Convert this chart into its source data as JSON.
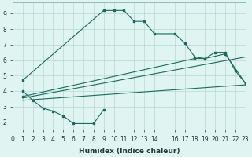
{
  "bg_color": "#e0f4f1",
  "grid_color": "#b8d8d4",
  "line_color": "#1a6b5a",
  "line1_x": [
    1,
    9,
    10,
    11,
    12,
    13,
    14,
    16,
    17,
    18,
    19,
    20,
    21,
    22,
    23
  ],
  "line1_y": [
    4.7,
    9.2,
    9.2,
    9.2,
    8.5,
    8.5,
    7.7,
    7.7,
    7.1,
    6.2,
    6.1,
    6.5,
    6.5,
    5.3,
    4.5
  ],
  "line2_x": [
    1,
    2,
    3,
    4,
    5,
    6,
    8,
    9
  ],
  "line2_y": [
    4.0,
    3.4,
    2.9,
    2.7,
    2.4,
    1.9,
    1.9,
    2.8
  ],
  "line3_x": [
    1,
    23
  ],
  "line3_y": [
    3.4,
    4.4
  ],
  "line4_x": [
    1,
    23
  ],
  "line4_y": [
    3.55,
    6.2
  ],
  "line5_x": [
    1,
    18,
    19,
    21,
    23
  ],
  "line5_y": [
    3.65,
    6.1,
    6.1,
    6.4,
    4.5
  ],
  "xlabel": "Humidex (Indice chaleur)",
  "xlim": [
    0,
    23
  ],
  "ylim": [
    1.5,
    9.7
  ],
  "yticks": [
    2,
    3,
    4,
    5,
    6,
    7,
    8,
    9
  ],
  "xticks": [
    0,
    1,
    2,
    3,
    4,
    5,
    6,
    7,
    8,
    9,
    10,
    11,
    12,
    13,
    14,
    16,
    17,
    18,
    19,
    20,
    21,
    22,
    23
  ],
  "tick_fontsize": 5.5,
  "xlabel_fontsize": 6.5
}
